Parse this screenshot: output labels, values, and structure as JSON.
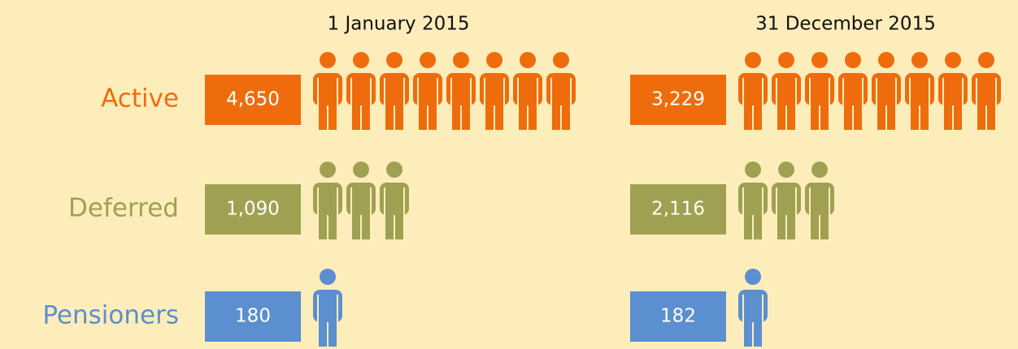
{
  "row_labels": [
    {
      "label": "Active",
      "color": "#ef6c0c"
    },
    {
      "label": "Deferred",
      "color": "#a0a052"
    },
    {
      "label": "Pensioners",
      "color": "#5b8fcf"
    }
  ],
  "columns": [
    {
      "title": "1 January 2015",
      "cells": [
        {
          "value": "4,650",
          "icons": 8
        },
        {
          "value": "1,090",
          "icons": 3
        },
        {
          "value": "180",
          "icons": 1
        }
      ]
    },
    {
      "title": "31 December 2015",
      "cells": [
        {
          "value": "3,229",
          "icons": 8
        },
        {
          "value": "2,116",
          "icons": 3
        },
        {
          "value": "182",
          "icons": 1
        }
      ]
    }
  ]
}
